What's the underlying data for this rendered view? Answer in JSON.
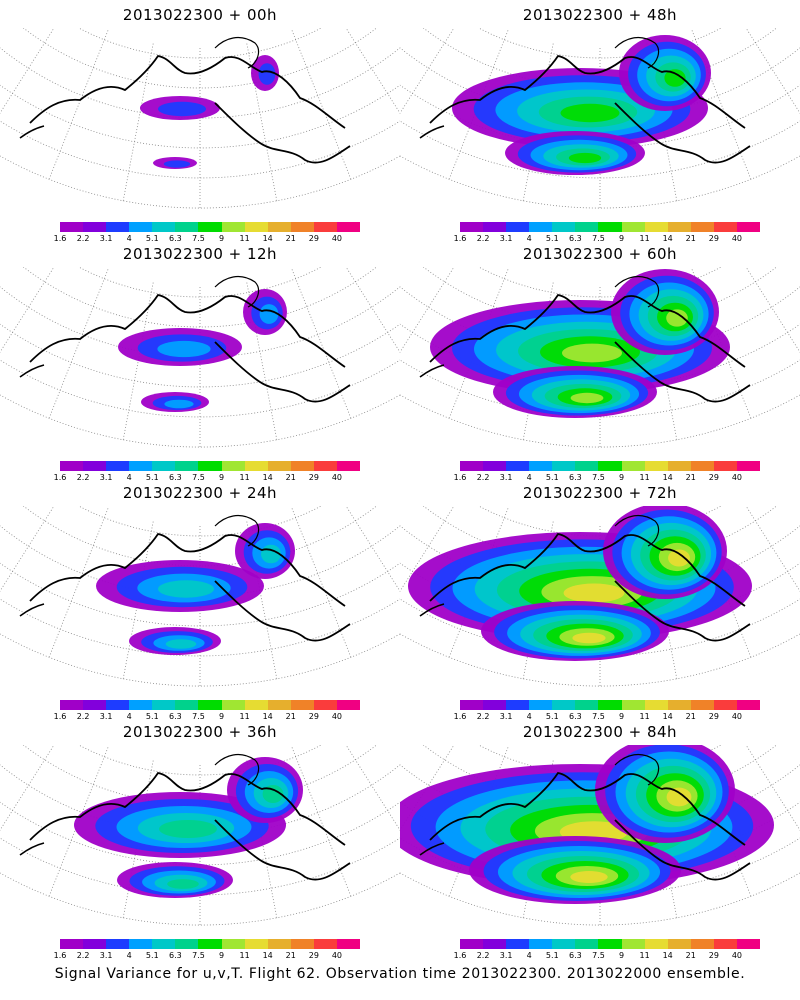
{
  "palette": [
    "#a000c8",
    "#8200dc",
    "#1e3cff",
    "#00a0ff",
    "#00c8c8",
    "#00d28c",
    "#00dc00",
    "#a0e632",
    "#e6dc32",
    "#e6af2d",
    "#f08228",
    "#fa3c3c",
    "#f00082"
  ],
  "colorbar_ticks": [
    "1.6",
    "2.2",
    "3.1",
    "4",
    "5.1",
    "6.3",
    "7.5",
    "9",
    "11",
    "14",
    "21",
    "29",
    "40"
  ],
  "panels": [
    {
      "title": "2013022300 + 00h",
      "level": 0
    },
    {
      "title": "2013022300 + 48h",
      "level": 4
    },
    {
      "title": "2013022300 + 12h",
      "level": 1
    },
    {
      "title": "2013022300 + 60h",
      "level": 5
    },
    {
      "title": "2013022300 + 24h",
      "level": 2
    },
    {
      "title": "2013022300 + 72h",
      "level": 6
    },
    {
      "title": "2013022300 + 36h",
      "level": 3
    },
    {
      "title": "2013022300 + 84h",
      "level": 7
    }
  ],
  "caption": "Signal Variance for u,v,T. Flight 62. Observation time 2013022300. 2013022000 ensemble."
}
